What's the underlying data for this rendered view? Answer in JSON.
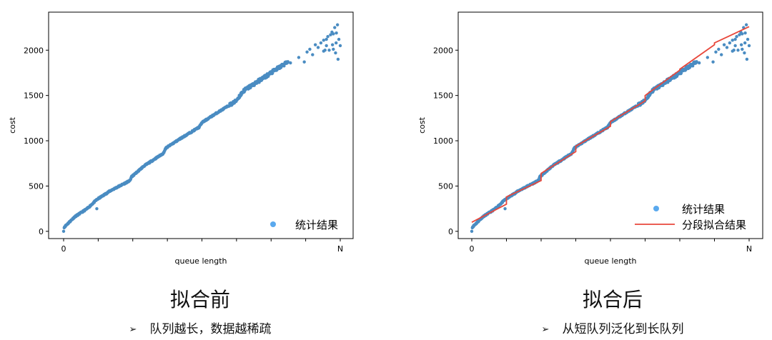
{
  "colors": {
    "scatter": "#4a8cc2",
    "legend_dot": "#5aa9ee",
    "fit_line": "#e8473b"
  },
  "captions": {
    "left_title": "拟合前",
    "left_bullet": "队列越长，数据越稀疏",
    "right_title": "拟合后",
    "right_bullet": "从短队列泛化到长队列",
    "bullet_icon": "arrow-bullet-icon"
  },
  "chart_data": [
    {
      "type": "scatter",
      "title": "",
      "xlabel": "queue length",
      "ylabel": "cost",
      "x_tick_labels": [
        "0",
        "N"
      ],
      "xlim": [
        0,
        1
      ],
      "ylim": [
        -80,
        2420
      ],
      "y_ticks": [
        0,
        500,
        1000,
        1500,
        2000
      ],
      "legend": {
        "position": "bottom-right",
        "entries": [
          {
            "name": "统计结果",
            "kind": "marker"
          }
        ]
      },
      "series": [
        {
          "name": "统计结果",
          "kind": "scatter",
          "anchors": [
            [
              0.0,
              40
            ],
            [
              0.02,
              100
            ],
            [
              0.04,
              160
            ],
            [
              0.06,
              200
            ],
            [
              0.085,
              250
            ],
            [
              0.12,
              350
            ],
            [
              0.17,
              450
            ],
            [
              0.24,
              560
            ],
            [
              0.245,
              600
            ],
            [
              0.29,
              720
            ],
            [
              0.36,
              860
            ],
            [
              0.37,
              920
            ],
            [
              0.42,
              1020
            ],
            [
              0.49,
              1150
            ],
            [
              0.5,
              1200
            ],
            [
              0.55,
              1300
            ],
            [
              0.62,
              1430
            ],
            [
              0.65,
              1550
            ],
            [
              0.7,
              1650
            ],
            [
              0.8,
              1850
            ],
            [
              0.86,
              1950
            ],
            [
              0.92,
              2050
            ],
            [
              0.96,
              2100
            ]
          ],
          "x_points": 640,
          "sparse_points": [
            [
              0.12,
              250
            ],
            [
              0.0,
              0
            ],
            [
              0.82,
              1860
            ],
            [
              0.85,
              1920
            ],
            [
              0.87,
              1870
            ],
            [
              0.88,
              1980
            ],
            [
              0.89,
              2010
            ],
            [
              0.9,
              1950
            ],
            [
              0.91,
              2060
            ],
            [
              0.92,
              2030
            ],
            [
              0.93,
              2080
            ],
            [
              0.94,
              2110
            ],
            [
              0.945,
              2000
            ],
            [
              0.95,
              2050
            ],
            [
              0.955,
              2150
            ],
            [
              0.96,
              2000
            ],
            [
              0.965,
              2170
            ],
            [
              0.97,
              2200
            ],
            [
              0.972,
              2060
            ],
            [
              0.975,
              2010
            ],
            [
              0.98,
              2250
            ],
            [
              0.983,
              1970
            ],
            [
              0.986,
              2190
            ],
            [
              0.99,
              2280
            ],
            [
              0.992,
              1900
            ],
            [
              0.995,
              2120
            ],
            [
              1.0,
              2050
            ],
            [
              0.94,
              1990
            ],
            [
              0.95,
              2120
            ],
            [
              0.975,
              2180
            ],
            [
              0.985,
              2080
            ]
          ]
        }
      ]
    },
    {
      "type": "scatter",
      "title": "",
      "xlabel": "queue length",
      "ylabel": "cost",
      "x_tick_labels": [
        "0",
        "N"
      ],
      "xlim": [
        0,
        1
      ],
      "ylim": [
        -80,
        2420
      ],
      "y_ticks": [
        0,
        500,
        1000,
        1500,
        2000
      ],
      "legend": {
        "position": "bottom-right",
        "entries": [
          {
            "name": "统计结果",
            "kind": "marker"
          },
          {
            "name": "分段拟合结果",
            "kind": "line"
          }
        ]
      },
      "series": [
        {
          "name": "统计结果",
          "kind": "scatter",
          "anchors": [
            [
              0.0,
              40
            ],
            [
              0.02,
              100
            ],
            [
              0.04,
              160
            ],
            [
              0.06,
              200
            ],
            [
              0.085,
              250
            ],
            [
              0.12,
              350
            ],
            [
              0.17,
              450
            ],
            [
              0.24,
              560
            ],
            [
              0.245,
              600
            ],
            [
              0.29,
              720
            ],
            [
              0.36,
              860
            ],
            [
              0.37,
              920
            ],
            [
              0.42,
              1020
            ],
            [
              0.49,
              1150
            ],
            [
              0.5,
              1200
            ],
            [
              0.55,
              1300
            ],
            [
              0.62,
              1430
            ],
            [
              0.65,
              1550
            ],
            [
              0.7,
              1650
            ],
            [
              0.8,
              1850
            ],
            [
              0.86,
              1950
            ],
            [
              0.92,
              2050
            ],
            [
              0.96,
              2100
            ]
          ],
          "x_points": 640,
          "sparse_points": [
            [
              0.12,
              250
            ],
            [
              0.0,
              0
            ],
            [
              0.82,
              1860
            ],
            [
              0.85,
              1920
            ],
            [
              0.87,
              1870
            ],
            [
              0.88,
              1980
            ],
            [
              0.89,
              2010
            ],
            [
              0.9,
              1950
            ],
            [
              0.91,
              2060
            ],
            [
              0.92,
              2030
            ],
            [
              0.93,
              2080
            ],
            [
              0.94,
              2110
            ],
            [
              0.945,
              2000
            ],
            [
              0.95,
              2050
            ],
            [
              0.955,
              2150
            ],
            [
              0.96,
              2000
            ],
            [
              0.965,
              2170
            ],
            [
              0.97,
              2200
            ],
            [
              0.972,
              2060
            ],
            [
              0.975,
              2010
            ],
            [
              0.98,
              2250
            ],
            [
              0.983,
              1970
            ],
            [
              0.986,
              2190
            ],
            [
              0.99,
              2280
            ],
            [
              0.992,
              1900
            ],
            [
              0.995,
              2120
            ],
            [
              1.0,
              2050
            ],
            [
              0.94,
              1990
            ],
            [
              0.95,
              2120
            ],
            [
              0.975,
              2180
            ],
            [
              0.985,
              2080
            ]
          ]
        },
        {
          "name": "分段拟合结果",
          "kind": "line",
          "points": [
            [
              0.0,
              100
            ],
            [
              0.125,
              300
            ],
            [
              0.125,
              380
            ],
            [
              0.25,
              560
            ],
            [
              0.25,
              640
            ],
            [
              0.375,
              880
            ],
            [
              0.375,
              940
            ],
            [
              0.5,
              1160
            ],
            [
              0.5,
              1210
            ],
            [
              0.625,
              1440
            ],
            [
              0.625,
              1500
            ],
            [
              0.75,
              1780
            ],
            [
              0.75,
              1790
            ],
            [
              0.875,
              2060
            ],
            [
              0.875,
              2080
            ],
            [
              1.0,
              2260
            ]
          ]
        }
      ]
    }
  ]
}
